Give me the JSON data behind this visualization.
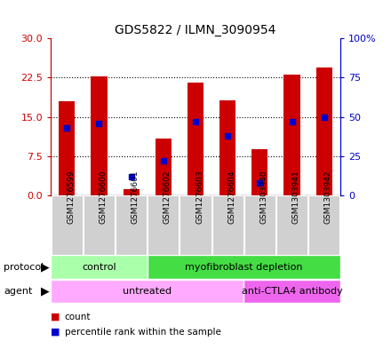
{
  "title": "GDS5822 / ILMN_3090954",
  "samples": [
    "GSM1276599",
    "GSM1276600",
    "GSM1276601",
    "GSM1276602",
    "GSM1276603",
    "GSM1276604",
    "GSM1303940",
    "GSM1303941",
    "GSM1303942"
  ],
  "count_values": [
    18.0,
    22.8,
    1.2,
    10.8,
    21.5,
    18.2,
    8.8,
    23.0,
    24.5
  ],
  "percentile_values": [
    43,
    46,
    12,
    22,
    47,
    38,
    8,
    47,
    50
  ],
  "left_ylim": [
    0,
    30
  ],
  "right_ylim": [
    0,
    100
  ],
  "left_yticks": [
    0,
    7.5,
    15,
    22.5,
    30
  ],
  "right_yticks": [
    0,
    25,
    50,
    75,
    100
  ],
  "right_yticklabels": [
    "0",
    "25",
    "50",
    "75",
    "100%"
  ],
  "left_color": "#cc0000",
  "right_color": "#0000cc",
  "bar_color": "#cc0000",
  "percentile_color": "#0000cc",
  "bar_width": 0.5,
  "protocol_groups": [
    {
      "label": "control",
      "start": 0,
      "end": 3,
      "color": "#aaffaa"
    },
    {
      "label": "myofibroblast depletion",
      "start": 3,
      "end": 9,
      "color": "#44dd44"
    }
  ],
  "agent_groups": [
    {
      "label": "untreated",
      "start": 0,
      "end": 6,
      "color": "#ffaaff"
    },
    {
      "label": "anti-CTLA4 antibody",
      "start": 6,
      "end": 9,
      "color": "#ee66ee"
    }
  ],
  "protocol_label": "protocol",
  "agent_label": "agent",
  "legend_count": "count",
  "legend_percentile": "percentile rank within the sample",
  "grid_color": "black",
  "background_color": "#ffffff",
  "plot_bg": "#ffffff",
  "sample_bg": "#d0d0d0"
}
